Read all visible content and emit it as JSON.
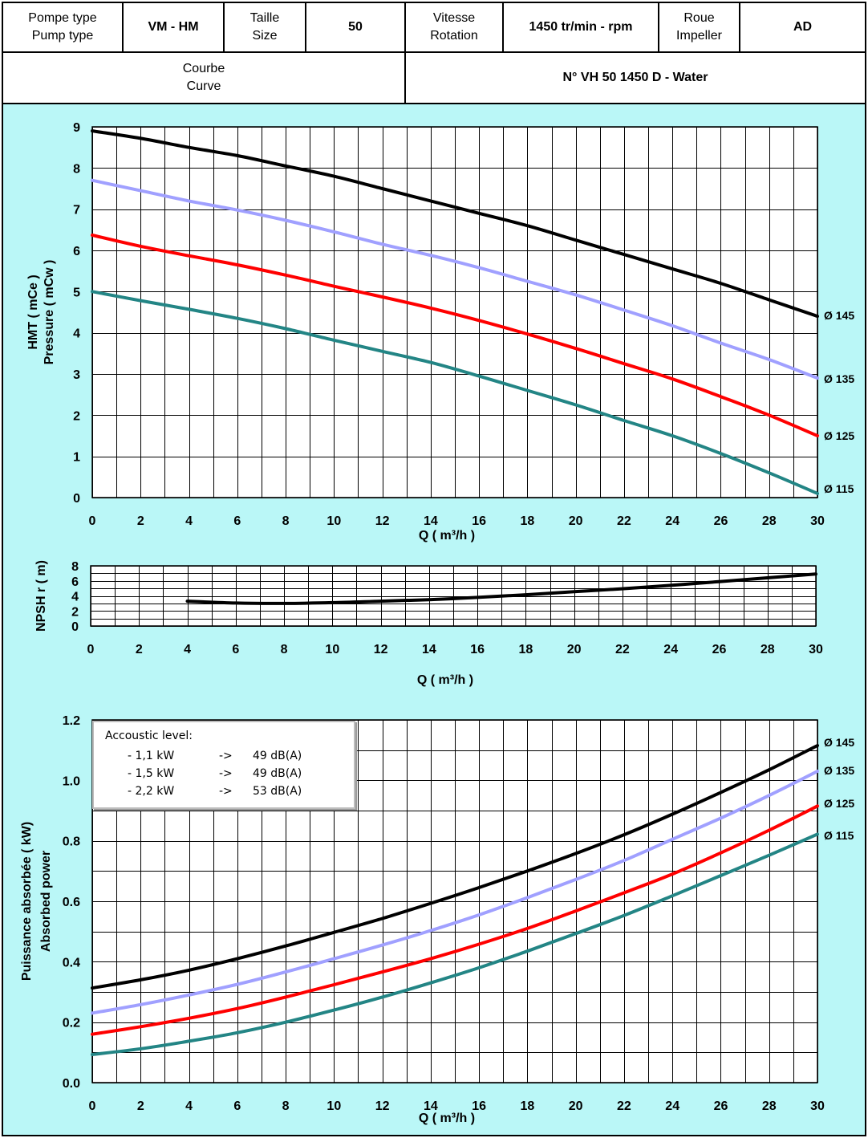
{
  "header": {
    "pump_type_label": [
      "Pompe type",
      "Pump type"
    ],
    "pump_type_value": "VM - HM",
    "size_label": [
      "Taille",
      "Size"
    ],
    "size_value": "50",
    "speed_label": [
      "Vitesse",
      "Rotation"
    ],
    "speed_value": "1450 tr/min - rpm",
    "impeller_label": [
      "Roue",
      "Impeller"
    ],
    "impeller_value": "AD",
    "curve_label": [
      "Courbe",
      "Curve"
    ],
    "curve_value": "N° VH 50 1450 D - Water"
  },
  "acoustic": {
    "title": "Accoustic level:",
    "rows": [
      {
        "power": "- 1,1 kW",
        "arrow": "->",
        "level": "49 dB(A)"
      },
      {
        "power": "- 1,5 kW",
        "arrow": "->",
        "level": "49 dB(A)"
      },
      {
        "power": "- 2,2 kW",
        "arrow": "->",
        "level": "53 dB(A)"
      }
    ]
  },
  "colors": {
    "background": "#baf7f7",
    "d145": "#000000",
    "d135": "#a0a0ff",
    "d125": "#ff0000",
    "d115": "#238585"
  },
  "chart_data": [
    {
      "type": "line",
      "xlabel": "Q ( m³/h )",
      "ylabel": [
        "HMT ( mCe )",
        "Pressure ( mCw )"
      ],
      "xlim": [
        0,
        30
      ],
      "ylim": [
        0,
        9
      ],
      "xticks": [
        "0",
        "2",
        "4",
        "6",
        "8",
        "10",
        "12",
        "14",
        "16",
        "18",
        "20",
        "22",
        "24",
        "26",
        "28",
        "30"
      ],
      "yticks": [
        "0",
        "1",
        "2",
        "3",
        "4",
        "5",
        "6",
        "7",
        "8",
        "9"
      ],
      "grid": true,
      "series": [
        {
          "name": "Ø 145",
          "color": "#000000",
          "x": [
            0,
            2,
            4,
            6,
            8,
            10,
            12,
            14,
            16,
            18,
            20,
            22,
            24,
            26,
            28,
            30
          ],
          "y": [
            8.9,
            8.72,
            8.5,
            8.3,
            8.05,
            7.8,
            7.5,
            7.2,
            6.9,
            6.6,
            6.25,
            5.9,
            5.55,
            5.2,
            4.8,
            4.4
          ]
        },
        {
          "name": "Ø 135",
          "color": "#a0a0ff",
          "x": [
            0,
            2,
            4,
            6,
            8,
            10,
            12,
            14,
            16,
            18,
            20,
            22,
            24,
            26,
            28,
            30
          ],
          "y": [
            7.7,
            7.45,
            7.2,
            6.98,
            6.73,
            6.45,
            6.15,
            5.88,
            5.58,
            5.25,
            4.92,
            4.55,
            4.17,
            3.75,
            3.35,
            2.9
          ]
        },
        {
          "name": "Ø 125",
          "color": "#ff0000",
          "x": [
            0,
            2,
            4,
            6,
            8,
            10,
            12,
            14,
            16,
            18,
            20,
            22,
            24,
            26,
            28,
            30
          ],
          "y": [
            6.37,
            6.1,
            5.87,
            5.65,
            5.4,
            5.13,
            4.87,
            4.6,
            4.3,
            3.97,
            3.62,
            3.25,
            2.88,
            2.45,
            2.0,
            1.5
          ]
        },
        {
          "name": "Ø 115",
          "color": "#238585",
          "x": [
            0,
            2,
            4,
            6,
            8,
            10,
            12,
            14,
            16,
            18,
            20,
            22,
            24,
            26,
            28,
            30
          ],
          "y": [
            5.0,
            4.78,
            4.57,
            4.35,
            4.1,
            3.82,
            3.55,
            3.28,
            2.95,
            2.6,
            2.25,
            1.87,
            1.5,
            1.07,
            0.6,
            0.1
          ]
        }
      ]
    },
    {
      "type": "line",
      "xlabel": "Q ( m³/h )",
      "ylabel": [
        "NPSH r ( m)"
      ],
      "xlim": [
        0,
        30
      ],
      "ylim": [
        0,
        8
      ],
      "xticks": [
        "0",
        "2",
        "4",
        "6",
        "8",
        "10",
        "12",
        "14",
        "16",
        "18",
        "20",
        "22",
        "24",
        "26",
        "28",
        "30"
      ],
      "yticks": [
        "0",
        "2",
        "4",
        "6",
        "8"
      ],
      "grid": true,
      "series": [
        {
          "name": "NPSH r",
          "color": "#000000",
          "x": [
            4,
            6,
            8,
            10,
            12,
            14,
            16,
            18,
            20,
            22,
            24,
            26,
            28,
            30
          ],
          "y": [
            3.3,
            3.05,
            3.0,
            3.1,
            3.3,
            3.5,
            3.8,
            4.15,
            4.55,
            4.95,
            5.4,
            5.9,
            6.4,
            6.9
          ]
        }
      ]
    },
    {
      "type": "line",
      "xlabel": "Q ( m³/h )",
      "ylabel": [
        "Puissance absorbée ( kW)",
        "Absorbed power"
      ],
      "xlim": [
        0,
        30
      ],
      "ylim": [
        0,
        1.2
      ],
      "xticks": [
        "0",
        "2",
        "4",
        "6",
        "8",
        "10",
        "12",
        "14",
        "16",
        "18",
        "20",
        "22",
        "24",
        "26",
        "28",
        "30"
      ],
      "yticks": [
        "0.0",
        "0.2",
        "0.4",
        "0.6",
        "0.8",
        "1.0",
        "1.2"
      ],
      "grid": true,
      "series": [
        {
          "name": "Ø 145",
          "color": "#000000",
          "x": [
            0,
            2,
            4,
            6,
            8,
            10,
            12,
            14,
            16,
            18,
            20,
            22,
            24,
            26,
            28,
            30
          ],
          "y": [
            0.313,
            0.34,
            0.372,
            0.41,
            0.452,
            0.497,
            0.543,
            0.593,
            0.645,
            0.7,
            0.758,
            0.82,
            0.888,
            0.96,
            1.035,
            1.115
          ]
        },
        {
          "name": "Ø 135",
          "color": "#a0a0ff",
          "x": [
            0,
            2,
            4,
            6,
            8,
            10,
            12,
            14,
            16,
            18,
            20,
            22,
            24,
            26,
            28,
            30
          ],
          "y": [
            0.23,
            0.258,
            0.29,
            0.325,
            0.366,
            0.41,
            0.455,
            0.503,
            0.555,
            0.612,
            0.672,
            0.735,
            0.805,
            0.875,
            0.95,
            1.03
          ]
        },
        {
          "name": "Ø 125",
          "color": "#ff0000",
          "x": [
            0,
            2,
            4,
            6,
            8,
            10,
            12,
            14,
            16,
            18,
            20,
            22,
            24,
            26,
            28,
            30
          ],
          "y": [
            0.16,
            0.185,
            0.213,
            0.245,
            0.283,
            0.324,
            0.366,
            0.41,
            0.458,
            0.51,
            0.568,
            0.628,
            0.69,
            0.76,
            0.835,
            0.915
          ]
        },
        {
          "name": "Ø 115",
          "color": "#238585",
          "x": [
            0,
            2,
            4,
            6,
            8,
            10,
            12,
            14,
            16,
            18,
            20,
            22,
            24,
            26,
            28,
            30
          ],
          "y": [
            0.093,
            0.112,
            0.137,
            0.165,
            0.2,
            0.24,
            0.283,
            0.33,
            0.38,
            0.435,
            0.493,
            0.553,
            0.618,
            0.685,
            0.752,
            0.822
          ]
        }
      ]
    }
  ]
}
